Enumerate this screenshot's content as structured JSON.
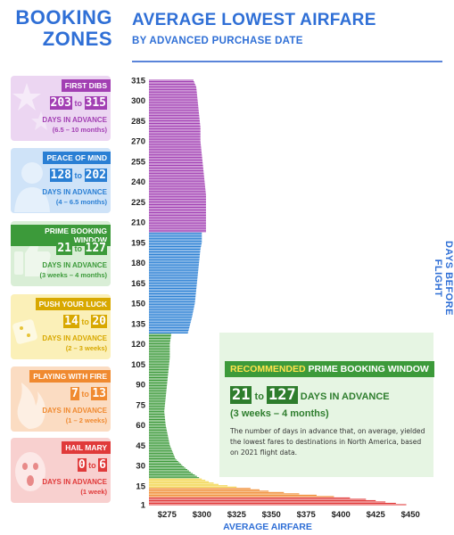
{
  "header": {
    "left_title_line1": "BOOKING",
    "left_title_line2": "ZONES",
    "title": "AVERAGE LOWEST AIRFARE",
    "subtitle": "BY ADVANCED PURCHASE DATE"
  },
  "zones": [
    {
      "name": "FIRST DIBS",
      "from": "203",
      "to_word": "to",
      "to": "315",
      "advance": "DAYS IN ADVANCE",
      "duration": "(6.5 – 10 months)",
      "color": "#a23fb3",
      "bg": "#ecd6f2"
    },
    {
      "name": "PEACE OF MIND",
      "from": "128",
      "to_word": "to",
      "to": "202",
      "advance": "DAYS IN ADVANCE",
      "duration": "(4 – 6.5 months)",
      "color": "#2a7fd4",
      "bg": "#cfe3f8"
    },
    {
      "name": "PRIME BOOKING WINDOW",
      "from": "21",
      "to_word": "to",
      "to": "127",
      "advance": "DAYS IN ADVANCE",
      "duration": "(3 weeks – 4 months)",
      "color": "#3c9a3a",
      "bg": "#d9eed6"
    },
    {
      "name": "PUSH YOUR LUCK",
      "from": "14",
      "to_word": "to",
      "to": "20",
      "advance": "DAYS IN ADVANCE",
      "duration": "(2 – 3 weeks)",
      "color": "#d8a800",
      "bg": "#fbf0b8"
    },
    {
      "name": "PLAYING WITH FIRE",
      "from": "7",
      "to_word": "to",
      "to": "13",
      "advance": "DAYS IN ADVANCE",
      "duration": "(1 – 2 weeks)",
      "color": "#f08a30",
      "bg": "#fbdcc2"
    },
    {
      "name": "HAIL MARY",
      "from": "0",
      "to_word": "to",
      "to": "6",
      "advance": "DAYS IN ADVANCE",
      "duration": "(1 week)",
      "color": "#e03a3a",
      "bg": "#f8d0cf"
    }
  ],
  "callout": {
    "highlight": "RECOMMENDED",
    "title": "PRIME BOOKING WINDOW",
    "from": "21",
    "to_word": "to",
    "to": "127",
    "advance": "DAYS IN ADVANCE",
    "duration": "(3 weeks – 4 months)",
    "note": "The number of days in advance that, on average, yielded the lowest fares to destinations in North America, based on 2021 flight data."
  },
  "chart_data": {
    "type": "bar",
    "orientation": "horizontal",
    "xlabel": "AVERAGE AIRFARE",
    "ylabel": "DAYS BEFORE FLIGHT",
    "xlim": [
      262,
      455
    ],
    "ylim": [
      1,
      315
    ],
    "x_ticks": [
      "$275",
      "$300",
      "$325",
      "$350",
      "$375",
      "$400",
      "$425",
      "$450"
    ],
    "x_tick_values": [
      275,
      300,
      325,
      350,
      375,
      400,
      425,
      450
    ],
    "y_ticks": [
      "315",
      "300",
      "285",
      "270",
      "255",
      "240",
      "225",
      "210",
      "195",
      "180",
      "165",
      "150",
      "135",
      "120",
      "105",
      "90",
      "75",
      "60",
      "45",
      "30",
      "15",
      "1"
    ],
    "y_tick_values": [
      315,
      300,
      285,
      270,
      255,
      240,
      225,
      210,
      195,
      180,
      165,
      150,
      135,
      120,
      105,
      90,
      75,
      60,
      45,
      30,
      15,
      1
    ],
    "curve_days": [
      1,
      3,
      5,
      7,
      9,
      11,
      13,
      14,
      16,
      18,
      20,
      21,
      25,
      30,
      35,
      40,
      45,
      50,
      55,
      60,
      70,
      80,
      90,
      100,
      110,
      120,
      127,
      128,
      140,
      150,
      160,
      170,
      180,
      190,
      195,
      202,
      203,
      210,
      220,
      230,
      240,
      250,
      260,
      270,
      280,
      290,
      300,
      310,
      315
    ],
    "curve_fares": [
      447,
      432,
      418,
      395,
      370,
      348,
      335,
      325,
      312,
      305,
      300,
      298,
      292,
      286,
      281,
      279,
      277,
      276,
      275,
      274,
      273,
      274,
      275,
      276,
      277,
      277,
      278,
      290,
      293,
      295,
      296,
      297,
      298,
      299,
      300,
      300,
      303,
      303,
      303,
      303,
      302,
      301,
      300,
      299,
      299,
      298,
      297,
      296,
      294
    ],
    "zone_bands": [
      {
        "from": 203,
        "to": 315,
        "color": "#a23fb3"
      },
      {
        "from": 128,
        "to": 202,
        "color": "#2a7fd4"
      },
      {
        "from": 21,
        "to": 127,
        "color": "#3c9a3a"
      },
      {
        "from": 14,
        "to": 20,
        "color": "#f2d447"
      },
      {
        "from": 7,
        "to": 13,
        "color": "#f08a30"
      },
      {
        "from": 1,
        "to": 6,
        "color": "#e03a3a"
      }
    ]
  },
  "colors": {
    "accent": "#2f6fd6"
  }
}
